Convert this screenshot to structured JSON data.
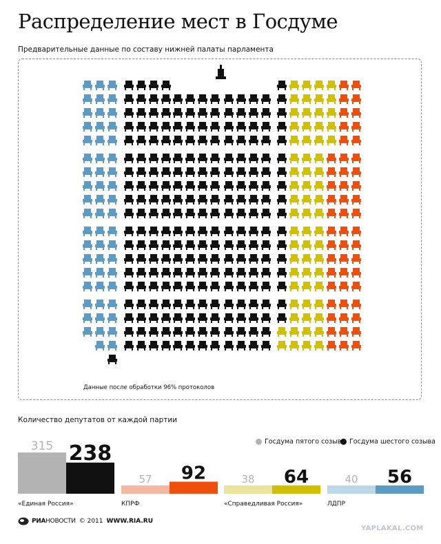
{
  "title": "Распределение мест в Госдуме",
  "subtitle": "Предварительные данные по составу нижней палаты парламента",
  "note": "Данные после обработки 96% протоколов",
  "counts_title": "Количество депутатов от каждой партии",
  "legend": {
    "fifth": "Госдума пятого созыва",
    "sixth": "Госдума шестого созыва"
  },
  "colors": {
    "ldpr": "#5b9bc4",
    "er": "#111111",
    "sr": "#d1c000",
    "kprf": "#f04e0c",
    "er_fifth": "#b3b3b3",
    "kprf_fifth": "#f7b6a0",
    "sr_fifth": "#ece49a",
    "ldpr_fifth": "#bcd6ea"
  },
  "footer": {
    "brand_bold": "РИА",
    "brand_thin": "НОВОСТИ",
    "copyright": "© 2011",
    "site": "WWW.RIA.RU"
  },
  "watermark": "YAPLAKAL.COM",
  "chart_data": [
    {
      "type": "waffle",
      "unit": "seat",
      "groups": [
        {
          "party": "ЛДПР",
          "value": 56
        },
        {
          "party": "«Единая Россия»",
          "value": 238
        },
        {
          "party": "«Справедливая Россия»",
          "value": 64
        },
        {
          "party": "КПРФ",
          "value": 92
        }
      ],
      "total": 450
    },
    {
      "type": "bar",
      "title": "Количество депутатов от каждой партии",
      "categories": [
        "«Единая Россия»",
        "КПРФ",
        "«Справедливая Россия»",
        "ЛДПР"
      ],
      "series": [
        {
          "name": "Госдума пятого созыва",
          "values": [
            315,
            57,
            38,
            40
          ]
        },
        {
          "name": "Госдума шестого созыва",
          "values": [
            238,
            92,
            64,
            56
          ]
        }
      ]
    }
  ]
}
